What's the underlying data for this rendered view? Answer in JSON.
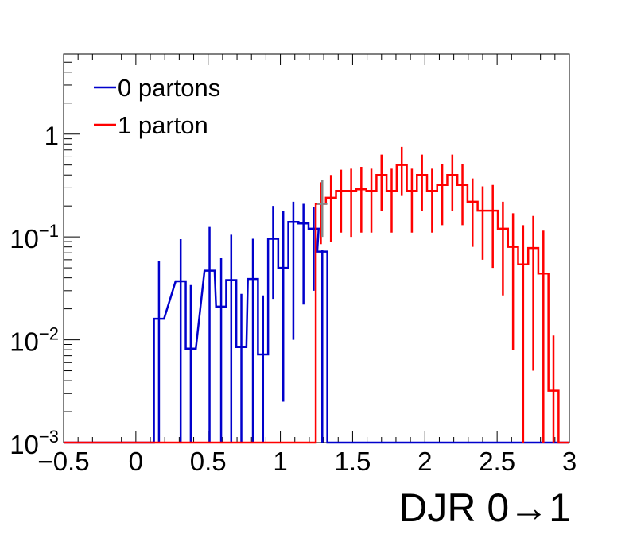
{
  "chart_data": {
    "type": "step-histogram",
    "xlabel": "DJR 0→1",
    "ylabel": "",
    "title": "",
    "xlim": [
      -0.5,
      3
    ],
    "ylim": [
      0.001,
      6
    ],
    "yscale": "log",
    "x_ticks": [
      {
        "v": -0.5,
        "label": "−0.5"
      },
      {
        "v": 0,
        "label": "0"
      },
      {
        "v": 0.5,
        "label": "0.5"
      },
      {
        "v": 1,
        "label": "1"
      },
      {
        "v": 1.5,
        "label": "1.5"
      },
      {
        "v": 2,
        "label": "2"
      },
      {
        "v": 2.5,
        "label": "2.5"
      },
      {
        "v": 3,
        "label": "3"
      }
    ],
    "y_ticks": [
      {
        "v": 1,
        "base": "1",
        "exp": ""
      },
      {
        "v": 0.1,
        "base": "10",
        "exp": "−1"
      },
      {
        "v": 0.01,
        "base": "10",
        "exp": "−2"
      },
      {
        "v": 0.001,
        "base": "10",
        "exp": "−3"
      }
    ],
    "legend_position": "top-left",
    "series": [
      {
        "name": "0 partons",
        "color": "#0000cc",
        "points": [
          {
            "x": 0.16,
            "y": 0.016,
            "err": [
              0.001,
              0.058
            ]
          },
          {
            "x": 0.31,
            "y": 0.037,
            "err": [
              0.001,
              0.095
            ]
          },
          {
            "x": 0.38,
            "y": 0.0082,
            "err": [
              0.001,
              0.034
            ]
          },
          {
            "x": 0.51,
            "y": 0.047,
            "err": [
              0.001,
              0.125
            ]
          },
          {
            "x": 0.59,
            "y": 0.021,
            "err": [
              0.001,
              0.062
            ]
          },
          {
            "x": 0.66,
            "y": 0.038,
            "err": [
              0.001,
              0.105
            ]
          },
          {
            "x": 0.73,
            "y": 0.0085,
            "err": [
              0.001,
              0.028
            ]
          },
          {
            "x": 0.81,
            "y": 0.039,
            "err": [
              0.001,
              0.096
            ]
          },
          {
            "x": 0.88,
            "y": 0.0072,
            "err": [
              0.001,
              0.027
            ]
          },
          {
            "x": 0.95,
            "y": 0.096,
            "err": [
              0.025,
              0.2
            ]
          },
          {
            "x": 1.02,
            "y": 0.05,
            "err": [
              0.0025,
              0.18
            ]
          },
          {
            "x": 1.09,
            "y": 0.14,
            "err": [
              0.01,
              0.22
            ]
          },
          {
            "x": 1.16,
            "y": 0.135,
            "err": [
              0.022,
              0.21
            ]
          },
          {
            "x": 1.23,
            "y": 0.12,
            "err": [
              0.03,
              0.195
            ]
          },
          {
            "x": 1.29,
            "y": 0.072,
            "err": [
              0.001,
              0.075
            ]
          }
        ]
      },
      {
        "name": "1 parton",
        "color": "#ff0000",
        "points": [
          {
            "x": 1.28,
            "y": 0.21,
            "err": [
              0.085,
              0.34
            ]
          },
          {
            "x": 1.35,
            "y": 0.24,
            "err": [
              0.09,
              0.4
            ]
          },
          {
            "x": 1.42,
            "y": 0.28,
            "err": [
              0.11,
              0.45
            ]
          },
          {
            "x": 1.49,
            "y": 0.28,
            "err": [
              0.1,
              0.46
            ]
          },
          {
            "x": 1.56,
            "y": 0.29,
            "err": [
              0.11,
              0.48
            ]
          },
          {
            "x": 1.63,
            "y": 0.28,
            "err": [
              0.11,
              0.46
            ]
          },
          {
            "x": 1.7,
            "y": 0.4,
            "err": [
              0.18,
              0.63
            ]
          },
          {
            "x": 1.77,
            "y": 0.28,
            "err": [
              0.11,
              0.46
            ]
          },
          {
            "x": 1.84,
            "y": 0.5,
            "err": [
              0.25,
              0.75
            ]
          },
          {
            "x": 1.91,
            "y": 0.28,
            "err": [
              0.11,
              0.46
            ]
          },
          {
            "x": 1.98,
            "y": 0.4,
            "err": [
              0.18,
              0.63
            ]
          },
          {
            "x": 2.05,
            "y": 0.28,
            "err": [
              0.11,
              0.46
            ]
          },
          {
            "x": 2.12,
            "y": 0.32,
            "err": [
              0.13,
              0.51
            ]
          },
          {
            "x": 2.19,
            "y": 0.4,
            "err": [
              0.18,
              0.63
            ]
          },
          {
            "x": 2.26,
            "y": 0.32,
            "err": [
              0.13,
              0.51
            ]
          },
          {
            "x": 2.33,
            "y": 0.22,
            "err": [
              0.08,
              0.37
            ]
          },
          {
            "x": 2.4,
            "y": 0.18,
            "err": [
              0.06,
              0.31
            ]
          },
          {
            "x": 2.47,
            "y": 0.18,
            "err": [
              0.05,
              0.32
            ]
          },
          {
            "x": 2.54,
            "y": 0.12,
            "err": [
              0.027,
              0.22
            ]
          },
          {
            "x": 2.61,
            "y": 0.08,
            "err": [
              0.008,
              0.17
            ]
          },
          {
            "x": 2.68,
            "y": 0.054,
            "err": [
              0.001,
              0.13
            ]
          },
          {
            "x": 2.75,
            "y": 0.078,
            "err": [
              0.005,
              0.16
            ]
          },
          {
            "x": 2.82,
            "y": 0.044,
            "err": [
              0.001,
              0.115
            ]
          },
          {
            "x": 2.89,
            "y": 0.0032,
            "err": [
              0.001,
              0.011
            ]
          }
        ]
      },
      {
        "name": "",
        "color": "#888888",
        "points": [
          {
            "x": 1.29,
            "y": 0.21,
            "err": [
              0.1,
              0.36
            ]
          }
        ]
      }
    ]
  }
}
